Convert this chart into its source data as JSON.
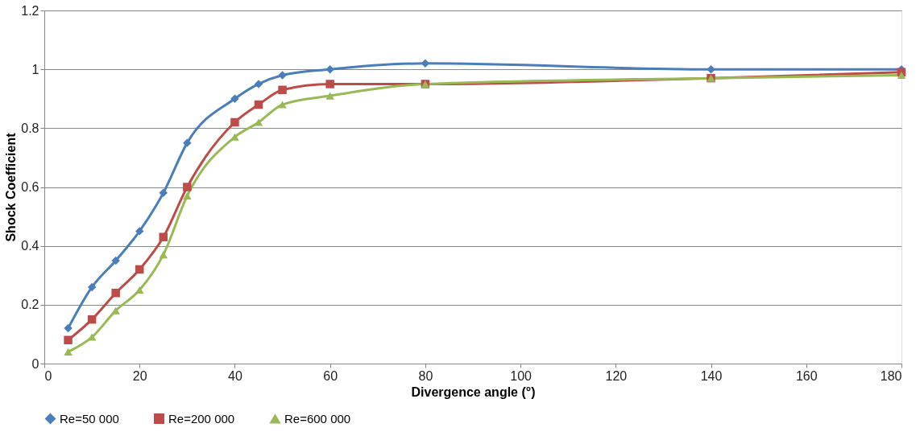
{
  "chart_data": {
    "type": "line",
    "xlabel": "Divergence angle (°)",
    "ylabel": "Shock Coefficient",
    "x": [
      5,
      10,
      15,
      20,
      25,
      30,
      40,
      45,
      50,
      60,
      80,
      140,
      180
    ],
    "xlim": [
      0,
      180
    ],
    "xticks": [
      0,
      20,
      40,
      60,
      80,
      100,
      120,
      140,
      160,
      180
    ],
    "ylim": [
      0,
      1.2
    ],
    "yticks": [
      0,
      0.2,
      0.4,
      0.6,
      0.8,
      1,
      1.2
    ],
    "grid": "y",
    "legend": "bottom",
    "series": [
      {
        "name": "Re=50 000",
        "color": "#4a7ebb",
        "marker": "diamond",
        "values": [
          0.12,
          0.26,
          0.35,
          0.45,
          0.58,
          0.75,
          0.9,
          0.95,
          0.98,
          1.0,
          1.02,
          1.0,
          1.0
        ]
      },
      {
        "name": "Re=200 000",
        "color": "#be4b48",
        "marker": "square",
        "values": [
          0.08,
          0.15,
          0.24,
          0.32,
          0.43,
          0.6,
          0.82,
          0.88,
          0.93,
          0.95,
          0.95,
          0.97,
          0.99
        ]
      },
      {
        "name": "Re=600 000",
        "color": "#98b954",
        "marker": "triangle",
        "values": [
          0.04,
          0.09,
          0.18,
          0.25,
          0.37,
          0.57,
          0.77,
          0.82,
          0.88,
          0.91,
          0.95,
          0.97,
          0.98
        ]
      }
    ]
  }
}
